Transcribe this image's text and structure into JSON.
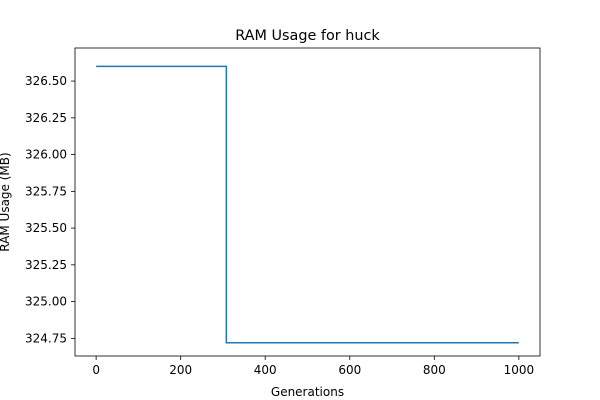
{
  "chart_data": {
    "type": "line",
    "title": "RAM Usage for huck",
    "xlabel": "Generations",
    "ylabel": "RAM Usage (MB)",
    "xlim": [
      -50,
      1050
    ],
    "ylim": [
      324.63,
      326.725
    ],
    "xticks": [
      0,
      200,
      400,
      600,
      800,
      1000
    ],
    "yticks": [
      324.75,
      325.0,
      325.25,
      325.5,
      325.75,
      326.0,
      326.25,
      326.5
    ],
    "grid": false,
    "series": [
      {
        "color": "#1f77b4",
        "step": true,
        "x": [
          0,
          308,
          308,
          1000
        ],
        "y": [
          326.6,
          326.6,
          324.72,
          324.72
        ]
      }
    ]
  }
}
